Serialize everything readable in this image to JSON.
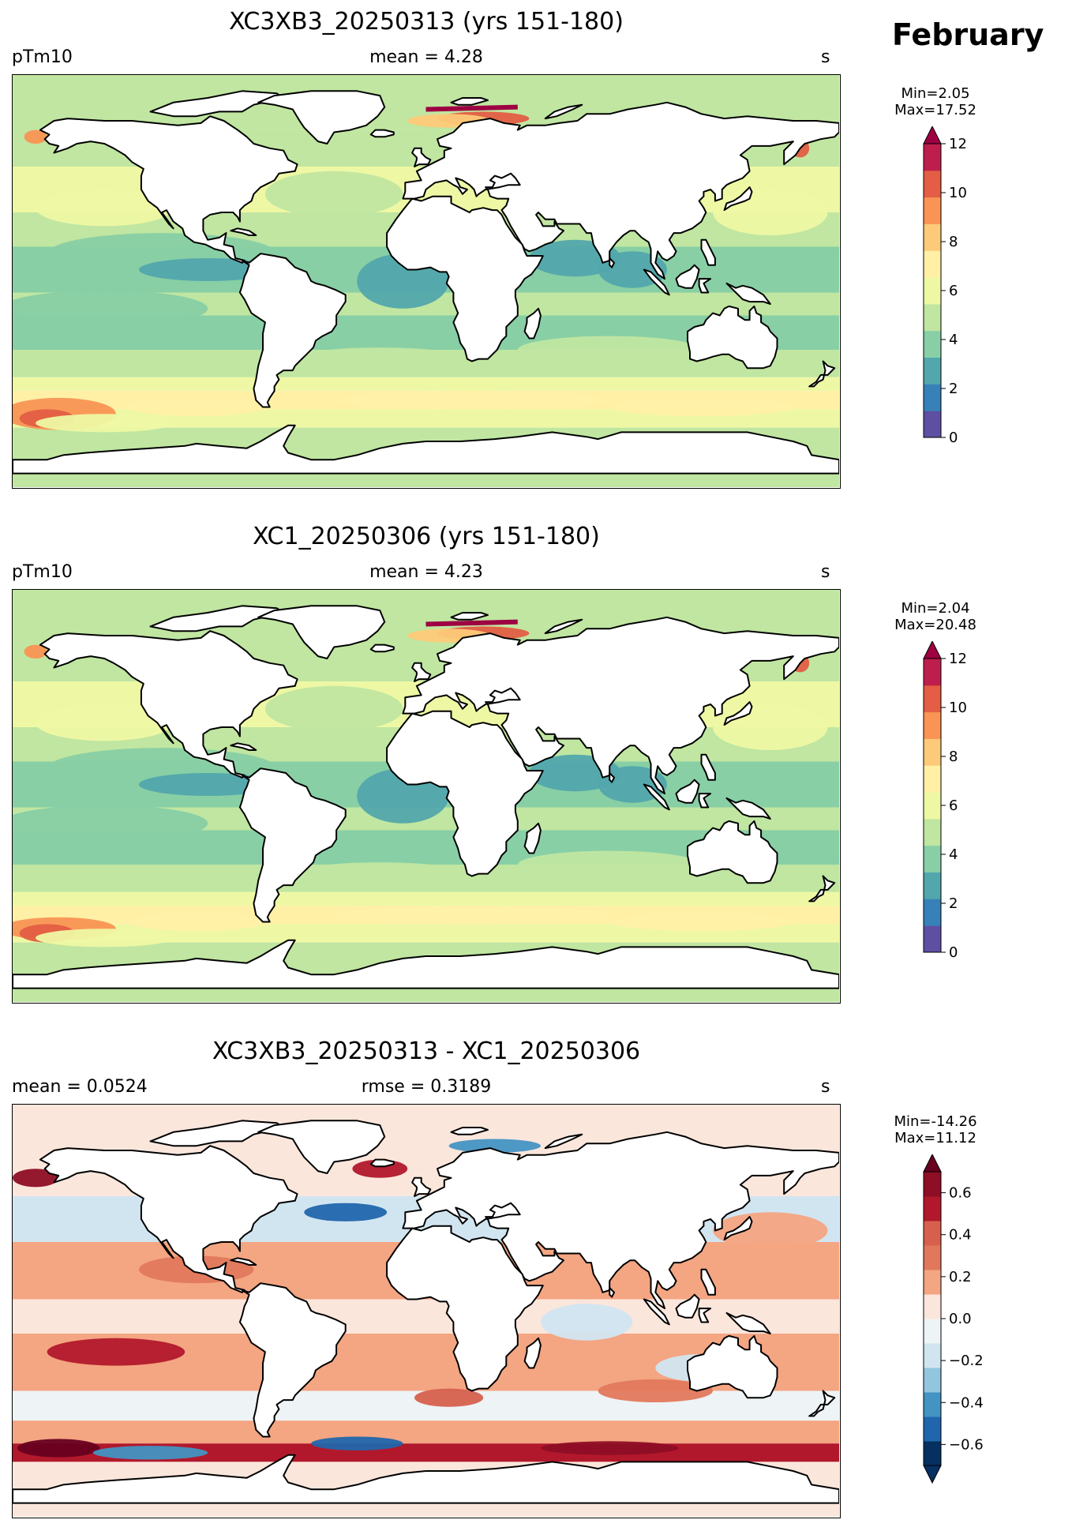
{
  "month": "February",
  "land_color": "#ffffff",
  "colors": {
    "abs": [
      "#5e4fa2",
      "#3781b8",
      "#52a7ac",
      "#88cfa5",
      "#c0e6a1",
      "#eef8a4",
      "#fff0a6",
      "#fdca79",
      "#f99454",
      "#e35e44",
      "#be1e4d"
    ],
    "abs_over": "#9e0142",
    "diff": [
      "#053061",
      "#2166ac",
      "#4393c3",
      "#92c5de",
      "#d1e5f0",
      "#eef3f6",
      "#fbe6dc",
      "#f4a582",
      "#e1785c",
      "#d6604d",
      "#b2182b",
      "#8e0e25"
    ],
    "diff_under": "#053061",
    "diff_over": "#67001f"
  },
  "panels": [
    {
      "title": "XC3XB3_20250313 (yrs 151-180)",
      "left": "pTm10",
      "center": "mean = 4.28",
      "right": "s",
      "min_label": "Min=2.05",
      "max_label": "Max=17.52",
      "kind": "abs"
    },
    {
      "title": "XC1_20250306 (yrs 151-180)",
      "left": "pTm10",
      "center": "mean = 4.23",
      "right": "s",
      "min_label": "Min=2.04",
      "max_label": "Max=20.48",
      "kind": "abs"
    },
    {
      "title": "XC3XB3_20250313 - XC1_20250306",
      "left": "mean = 0.0524",
      "center": "rmse = 0.3189",
      "right": "s",
      "min_label": "Min=-14.26",
      "max_label": "Max=11.12",
      "kind": "diff"
    }
  ],
  "colorbars": {
    "abs": {
      "min": 0,
      "max": 12,
      "extend": "max",
      "ticks": [
        "0",
        "2",
        "4",
        "6",
        "8",
        "10",
        "12"
      ]
    },
    "diff": {
      "min": -0.7,
      "max": 0.7,
      "extend": "both",
      "ticks": [
        "−0.6",
        "−0.4",
        "−0.2",
        "0.0",
        "0.2",
        "0.4",
        "0.6"
      ],
      "tick_values": [
        -0.6,
        -0.4,
        -0.2,
        0.0,
        0.2,
        0.4,
        0.6
      ]
    }
  }
}
